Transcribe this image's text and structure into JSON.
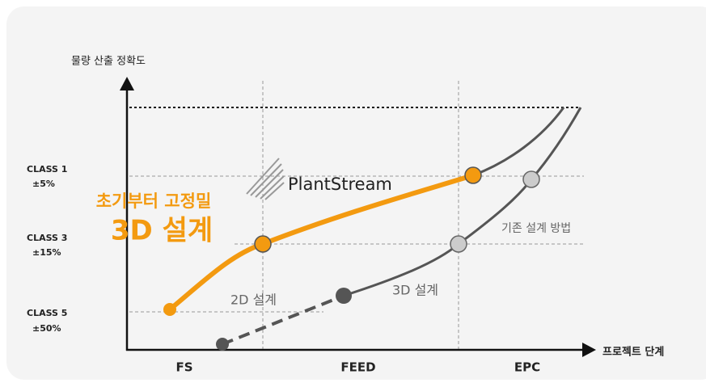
{
  "y_axis_label": "물량 산출 정확도",
  "x_axis_label": "프로젝트 단계",
  "classes": [
    {
      "name": "CLASS 1",
      "accuracy": "±5%"
    },
    {
      "name": "CLASS 3",
      "accuracy": "±15%"
    },
    {
      "name": "CLASS 5",
      "accuracy": "±50%"
    }
  ],
  "headline": {
    "line1": "초기부터 고정밀",
    "line2": "3D 설계"
  },
  "logo": "PlantStream",
  "curve_labels": {
    "legacy": "기존 설계 방법",
    "design_2d": "2D 설계",
    "design_3d": "3D 설계"
  },
  "phases": [
    "FS",
    "FEED",
    "EPC"
  ]
}
